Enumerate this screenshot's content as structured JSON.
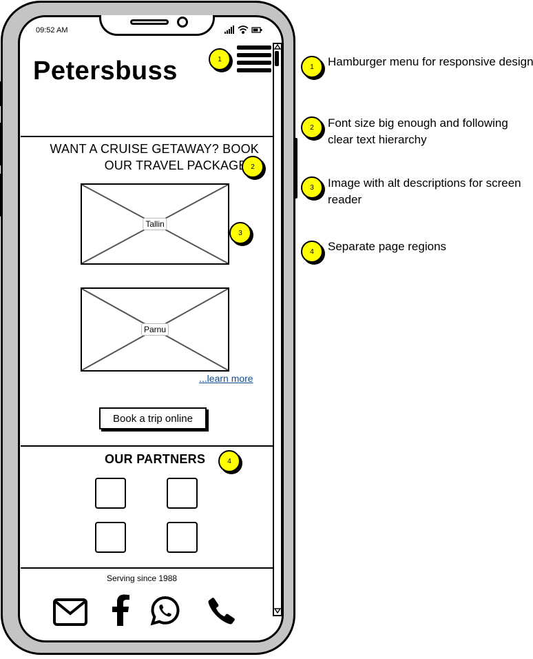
{
  "status": {
    "time": "09:52 AM"
  },
  "header": {
    "logo": "Petersbuss"
  },
  "hero": {
    "headline": "WANT A CRUISE GETAWAY? BOOK OUR TRAVEL PACKAGES!",
    "images": [
      "Tallin",
      "Parnu"
    ],
    "learn_more": "...learn more",
    "book_button": "Book a trip online"
  },
  "partners": {
    "title": "OUR PARTNERS"
  },
  "footer": {
    "text": "Serving since 1988",
    "icons": [
      "mail-icon",
      "facebook-icon",
      "whatsapp-icon",
      "phone-icon"
    ]
  },
  "markers": [
    "1",
    "2",
    "3",
    "4"
  ],
  "annotations": [
    {
      "number": "1",
      "text": "Hamburger menu for responsive design"
    },
    {
      "number": "2",
      "text": "Font size big enough and following clear text hierarchy"
    },
    {
      "number": "3",
      "text": "Image with alt descriptions for screen reader"
    },
    {
      "number": "4",
      "text": "Separate page regions"
    }
  ],
  "colors": {
    "marker": "#ffff00",
    "link": "#0b4f9c",
    "frame": "#c4c4c4"
  }
}
